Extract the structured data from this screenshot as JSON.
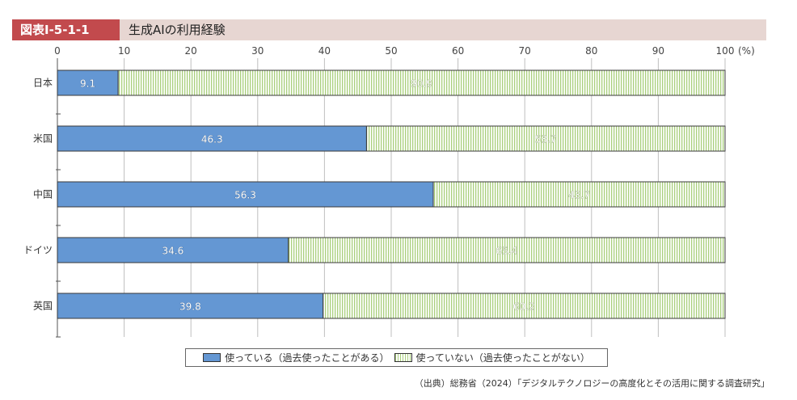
{
  "header": {
    "figure_label": "図表Ⅰ-5-1-1",
    "title": "生成AIの利用経験"
  },
  "colors": {
    "used": "#6497d3",
    "unused_stripe": "#a9cf7c",
    "label_bg": "#c24a4d",
    "title_bg": "#e7d6d2"
  },
  "chart_data": {
    "type": "bar",
    "orientation": "horizontal",
    "stacked": true,
    "categories": [
      "日本",
      "米国",
      "中国",
      "ドイツ",
      "英国"
    ],
    "series": [
      {
        "name": "使っている（過去使ったことがある）",
        "values": [
          9.1,
          46.3,
          56.3,
          34.6,
          39.8
        ]
      },
      {
        "name": "使っていない（過去使ったことがない）",
        "values": [
          90.9,
          53.7,
          43.7,
          65.4,
          60.2
        ]
      }
    ],
    "xlim": [
      0,
      100
    ],
    "x_ticks": [
      0,
      10,
      20,
      30,
      40,
      50,
      60,
      70,
      80,
      90,
      100
    ],
    "x_unit": "(%)",
    "grid": true,
    "legend_position": "bottom"
  },
  "legend": {
    "used_label": "使っている（過去使ったことがある）",
    "unused_label": "使っていない（過去使ったことがない）"
  },
  "source": "（出典）総務省（2024）「デジタルテクノロジーの高度化とその活用に関する調査研究」"
}
